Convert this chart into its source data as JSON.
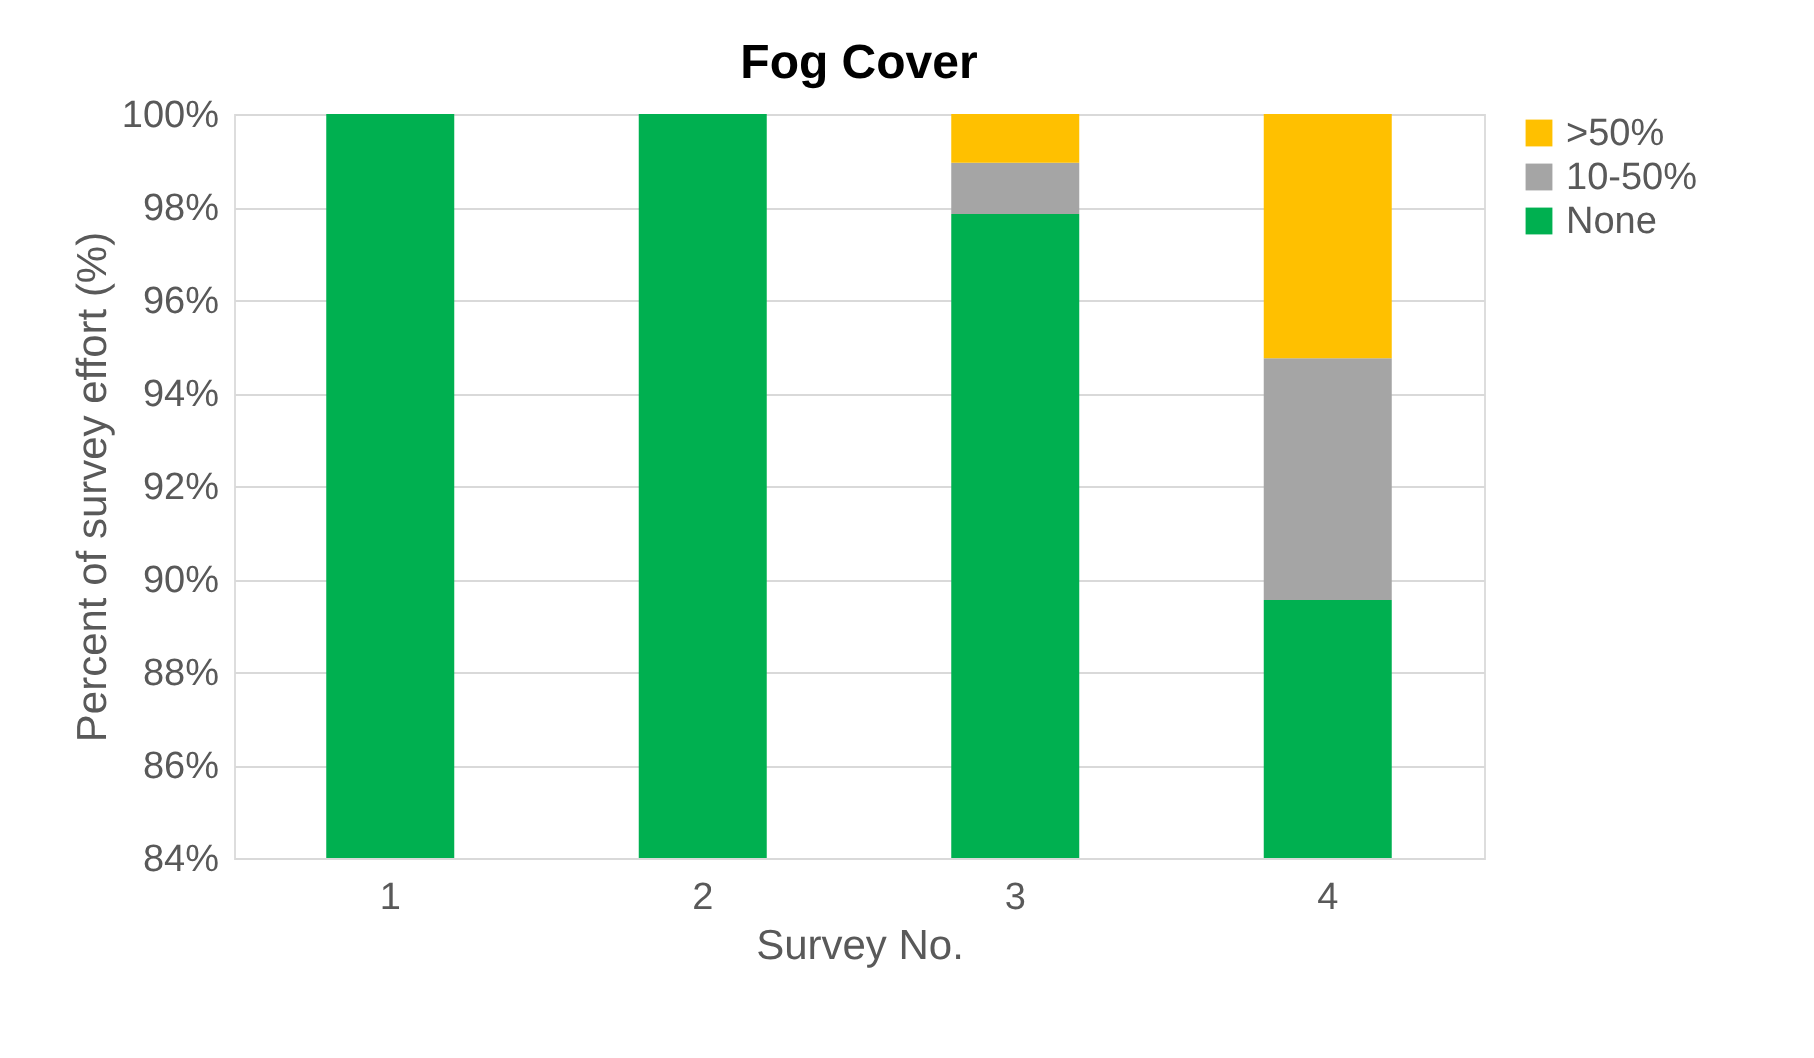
{
  "chart_data": {
    "type": "bar",
    "title": "Fog Cover",
    "xlabel": "Survey No.",
    "ylabel": "Percent of survey effort (%)",
    "categories": [
      "1",
      "2",
      "3",
      "4"
    ],
    "stacked": true,
    "series": [
      {
        "name": "None",
        "color": "#00b050",
        "values": [
          100,
          100,
          97.85,
          89.55
        ]
      },
      {
        "name": "10-50%",
        "color": "#a5a5a5",
        "values": [
          null,
          null,
          1.1,
          5.2
        ],
        "base": [
          null,
          null,
          97.85,
          89.55
        ]
      },
      {
        "name": ">50%",
        "color": "#ffc000",
        "values": [
          null,
          null,
          1.05,
          5.25
        ],
        "base": [
          null,
          null,
          98.95,
          94.75
        ]
      }
    ],
    "ylim": [
      84,
      100
    ],
    "yticks": [
      {
        "value": 84,
        "label": "84%"
      },
      {
        "value": 86,
        "label": "86%"
      },
      {
        "value": 88,
        "label": "88%"
      },
      {
        "value": 90,
        "label": "90%"
      },
      {
        "value": 92,
        "label": "92%"
      },
      {
        "value": 94,
        "label": "94%"
      },
      {
        "value": 96,
        "label": "96%"
      },
      {
        "value": 98,
        "label": "98%"
      },
      {
        "value": 100,
        "label": "100%"
      }
    ],
    "grid": "y",
    "legend": "right"
  }
}
